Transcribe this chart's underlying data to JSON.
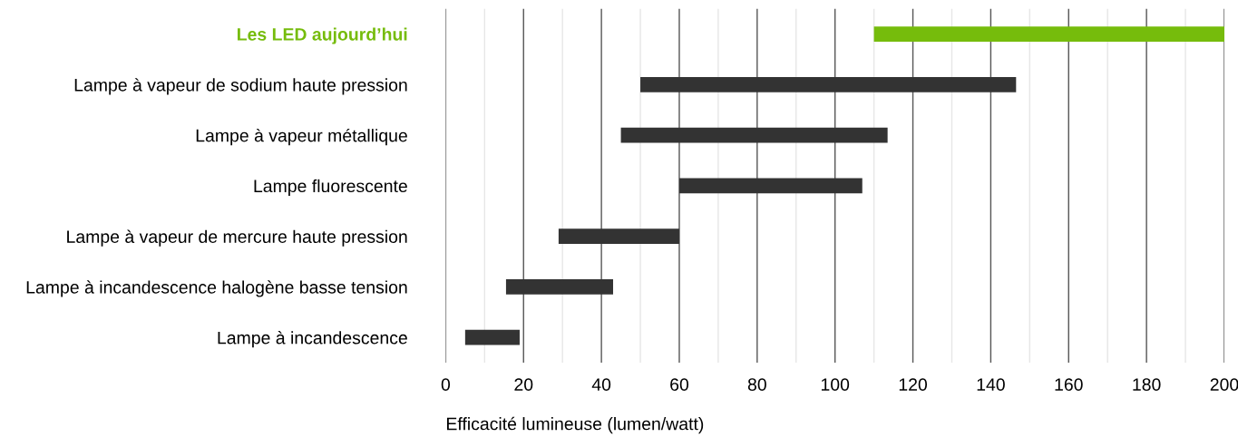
{
  "chart_data": {
    "type": "bar",
    "orientation": "horizontal",
    "xlabel": "Efficacité lumineuse (lumen/watt)",
    "categories": [
      "Les LED aujourd’hui",
      "Lampe à vapeur de sodium haute pression",
      "Lampe à vapeur métallique",
      "Lampe fluorescente",
      "Lampe à vapeur de mercure haute pression",
      "Lampe à incandescence halogène basse tension",
      "Lampe à incandescence"
    ],
    "base": [
      110,
      50,
      45,
      60,
      29,
      15.5,
      5
    ],
    "values": [
      90,
      96.5,
      68.5,
      47,
      31,
      27.5,
      14
    ],
    "colors": [
      "#76bc0c",
      "#333333",
      "#333333",
      "#333333",
      "#333333",
      "#333333",
      "#333333"
    ],
    "xlim": [
      0,
      200
    ],
    "xticks": [
      0,
      {
        "value": 10,
        "label": null
      },
      20,
      {
        "value": 30,
        "label": null
      },
      40,
      {
        "value": 50,
        "label": null
      },
      60,
      {
        "value": 70,
        "label": null
      },
      80,
      {
        "value": 90,
        "label": null
      },
      100,
      {
        "value": 110,
        "label": null
      },
      120,
      {
        "value": 130,
        "label": null
      },
      140,
      {
        "value": 150,
        "label": null
      },
      160,
      {
        "value": 170,
        "label": null
      },
      180,
      {
        "value": 190,
        "label": null
      },
      200
    ],
    "grid": "x"
  }
}
